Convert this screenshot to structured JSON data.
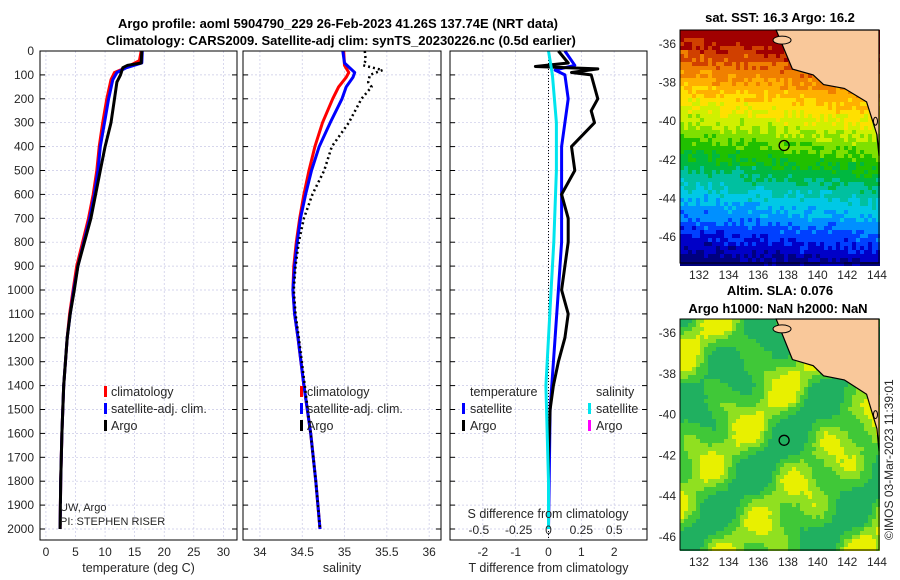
{
  "title": {
    "line1": "Argo profile: aoml 5904790_229 26-Feb-2023 41.26S 137.74E (NRT data)",
    "line2": "Climatology: CARS2009. Satellite-adj clim: synTS_20230226.nc (0.5d earlier)"
  },
  "credits": {
    "line1": "UW, Argo",
    "line2": "PI: STEPHEN RISER",
    "copyright": "©IMOS 03-Mar-2023 11:39:01"
  },
  "colors": {
    "climatology": "#ff0000",
    "satellite": "#0000ff",
    "argo": "#000000",
    "s_satellite": "#00e5ee",
    "s_argo": "#ff00ff"
  },
  "chart_data": [
    {
      "type": "line",
      "name": "temperature",
      "xlabel": "temperature (deg C)",
      "ylabel": "",
      "xlim": [
        -1,
        32.3
      ],
      "ylim": [
        2046,
        0
      ],
      "xticks": [
        "0",
        "5",
        "10",
        "15",
        "20",
        "25",
        "30"
      ],
      "xtick_vals": [
        0,
        5,
        10,
        15,
        20,
        25,
        30
      ],
      "yticks": [
        "0",
        "100",
        "200",
        "300",
        "400",
        "500",
        "600",
        "700",
        "800",
        "900",
        "1000",
        "1100",
        "1200",
        "1300",
        "1400",
        "1500",
        "1600",
        "1700",
        "1800",
        "1900",
        "2000"
      ],
      "legend": [
        "climatology",
        "satellite-adj. clim.",
        "Argo"
      ],
      "series": [
        {
          "name": "climatology",
          "depth": [
            0,
            40,
            70,
            90,
            120,
            200,
            300,
            400,
            500,
            600,
            700,
            800,
            900,
            1000,
            1100,
            1200,
            1400,
            1600,
            1800,
            2000
          ],
          "values": [
            16.1,
            15.8,
            13.5,
            11.6,
            11.0,
            10.3,
            9.6,
            9.0,
            8.6,
            8.0,
            7.2,
            6.2,
            5.2,
            4.6,
            4.0,
            3.6,
            3.0,
            2.7,
            2.5,
            2.4
          ]
        },
        {
          "name": "satellite-adj. clim.",
          "depth": [
            0,
            50,
            70,
            90,
            120,
            200,
            300,
            400,
            500,
            600,
            700,
            800,
            900,
            1000,
            1100,
            1200,
            1400,
            1600,
            1800,
            2000
          ],
          "values": [
            16.3,
            16.2,
            13.6,
            12.0,
            11.3,
            10.6,
            9.9,
            9.2,
            8.8,
            8.2,
            7.4,
            6.4,
            5.4,
            4.7,
            4.1,
            3.6,
            3.0,
            2.7,
            2.5,
            2.4
          ]
        },
        {
          "name": "Argo",
          "depth": [
            0,
            50,
            60,
            70,
            100,
            130,
            200,
            300,
            400,
            500,
            600,
            700,
            800,
            900,
            1000,
            1100,
            1200,
            1400,
            1600,
            1800,
            2000
          ],
          "values": [
            16.2,
            16.1,
            13.8,
            13.0,
            12.6,
            12.0,
            11.6,
            11.0,
            10.0,
            9.2,
            8.4,
            7.6,
            6.5,
            5.4,
            4.8,
            4.1,
            3.6,
            3.0,
            2.7,
            2.5,
            2.4
          ]
        }
      ]
    },
    {
      "type": "line",
      "name": "salinity",
      "xlabel": "salinity",
      "ylabel": "",
      "xlim": [
        33.8,
        36.14
      ],
      "ylim": [
        2046,
        0
      ],
      "xticks": [
        "34",
        "34.5",
        "35",
        "35.5",
        "36"
      ],
      "xtick_vals": [
        34,
        34.5,
        35,
        35.5,
        36
      ],
      "legend": [
        "climatology",
        "satellite-adj. clim.",
        "Argo"
      ],
      "series": [
        {
          "name": "climatology",
          "depth": [
            0,
            60,
            90,
            110,
            150,
            200,
            300,
            400,
            500,
            600,
            700,
            800,
            900,
            1000,
            1100,
            1200,
            1400,
            1600,
            1800,
            2000
          ],
          "values": [
            34.99,
            35.0,
            35.05,
            35.02,
            34.93,
            34.86,
            34.74,
            34.65,
            34.58,
            34.52,
            34.47,
            34.43,
            34.4,
            34.39,
            34.41,
            34.45,
            34.52,
            34.6,
            34.66,
            34.71
          ]
        },
        {
          "name": "satellite-adj. clim.",
          "depth": [
            0,
            50,
            90,
            110,
            150,
            200,
            300,
            400,
            500,
            600,
            700,
            800,
            900,
            1000,
            1100,
            1200,
            1400,
            1600,
            1800,
            2000
          ],
          "values": [
            34.98,
            35.0,
            35.12,
            35.1,
            35.02,
            34.97,
            34.83,
            34.7,
            34.61,
            34.54,
            34.48,
            34.44,
            34.41,
            34.39,
            34.41,
            34.45,
            34.52,
            34.6,
            34.66,
            34.71
          ]
        },
        {
          "name": "Argo",
          "depth": [
            0,
            40,
            60,
            80,
            100,
            130,
            150,
            200,
            300,
            400,
            500,
            600,
            700,
            800,
            900,
            1000,
            1100,
            1200,
            1400,
            1600,
            1800,
            2000
          ],
          "values": [
            35.24,
            35.25,
            35.22,
            35.45,
            35.3,
            35.28,
            35.32,
            35.2,
            35.05,
            34.85,
            34.76,
            34.62,
            34.52,
            34.46,
            34.42,
            34.4,
            34.42,
            34.46,
            34.53,
            34.6,
            34.66,
            34.71
          ]
        }
      ]
    },
    {
      "type": "line",
      "name": "difference",
      "xlabel": "T difference from climatology",
      "x2label": "S difference from climatology",
      "xlim": [
        -3,
        3
      ],
      "ylim": [
        2046,
        0
      ],
      "xticks": [
        "-2",
        "-1",
        "0",
        "1",
        "2"
      ],
      "xtick_vals": [
        -2,
        -1,
        0,
        1,
        2
      ],
      "x2ticks": [
        "-0.5",
        "-0.25",
        "0",
        "0.25",
        "0.5"
      ],
      "x2tick_vals": [
        -0.5,
        -0.25,
        0,
        0.25,
        0.5
      ],
      "legend_t_title": "temperature",
      "legend_s_title": "salinity",
      "legend": [
        "satellite",
        "Argo",
        "satellite",
        "Argo"
      ],
      "series": [
        {
          "name": "T satellite",
          "depth": [
            0,
            60,
            80,
            100,
            200,
            300,
            400,
            600,
            800,
            1000,
            1200,
            1500,
            1800,
            2000
          ],
          "values": [
            0.5,
            0.8,
            0.2,
            0.5,
            0.6,
            0.5,
            0.4,
            0.4,
            0.4,
            0.3,
            0.2,
            0.05,
            0.02,
            0.0
          ]
        },
        {
          "name": "T Argo",
          "depth": [
            0,
            50,
            65,
            75,
            90,
            100,
            150,
            200,
            250,
            300,
            400,
            500,
            600,
            700,
            800,
            900,
            1000,
            1100,
            1200,
            1300,
            1400,
            1500,
            1700,
            2000
          ],
          "values": [
            0.3,
            0.6,
            -0.4,
            1.5,
            0.7,
            1.3,
            1.4,
            1.5,
            1.3,
            1.4,
            0.7,
            0.8,
            0.4,
            0.6,
            0.6,
            0.5,
            0.4,
            0.6,
            0.5,
            0.3,
            0.15,
            0.05,
            0.0,
            0.0
          ]
        },
        {
          "name": "S satellite",
          "depth": [
            0,
            100,
            300,
            500,
            800,
            1000,
            1200,
            1400,
            1600,
            1800,
            2000
          ],
          "values": [
            0.0,
            0.03,
            0.06,
            0.06,
            0.04,
            0.02,
            0.0,
            -0.02,
            -0.01,
            0.0,
            0.0
          ]
        }
      ]
    }
  ],
  "maps": [
    {
      "title": "sat. SST: 16.3 Argo: 16.2",
      "lon_ticks": [
        "132",
        "134",
        "136",
        "138",
        "140",
        "142",
        "144"
      ],
      "lat_ticks": [
        "-36",
        "-38",
        "-40",
        "-42",
        "-44",
        "-46"
      ],
      "float_lon": 137.74,
      "float_lat": -41.26
    },
    {
      "title_line1": "Altim. SLA: 0.076",
      "title_line2": "Argo h1000: NaN h2000: NaN",
      "lon_ticks": [
        "132",
        "134",
        "136",
        "138",
        "140",
        "142",
        "144"
      ],
      "lat_ticks": [
        "-36",
        "-38",
        "-40",
        "-42",
        "-44",
        "-46"
      ],
      "float_lon": 137.74,
      "float_lat": -41.26
    }
  ]
}
